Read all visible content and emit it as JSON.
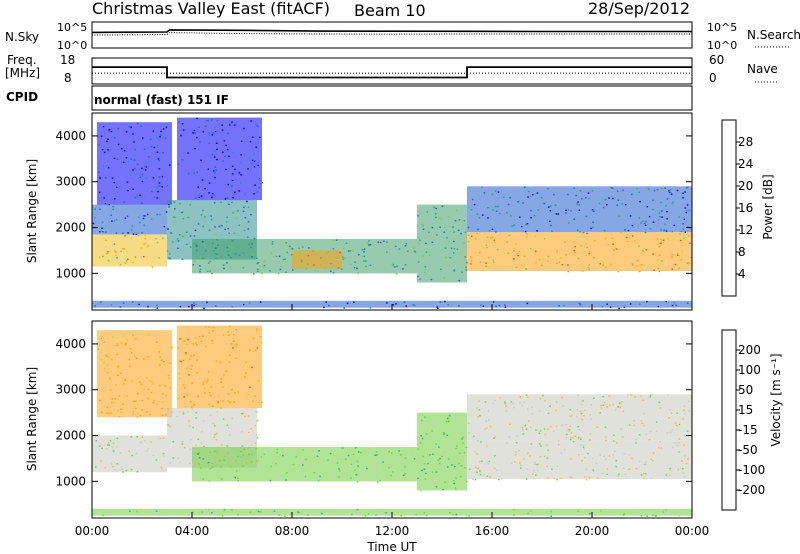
{
  "header": {
    "station": "Christmas Valley East (fitACF)",
    "beam": "Beam 10",
    "date": "28/Sep/2012"
  },
  "strips": {
    "nsky_label": "N.Sky",
    "nsky_ticks": [
      "10^5",
      "10^0"
    ],
    "nsearch_label": "N.Search",
    "nsearch_ticks": [
      "10^5",
      "10^0"
    ],
    "freq_label_line1": "Freq.",
    "freq_label_line2": "[MHz]",
    "freq_ticks": [
      "18",
      "8"
    ],
    "nave_label": "Nave",
    "nave_ticks": [
      "60",
      "0"
    ],
    "cpid_label": "CPID",
    "cpid_value": "normal (fast) 151 IF"
  },
  "colors": {
    "power_scale": [
      "#0000ff",
      "#2060d0",
      "#2f8f8f",
      "#3fa070",
      "#6fd040",
      "#f0c020",
      "#ffa010",
      "#ff5000",
      "#ff0000"
    ],
    "velocity_scale": [
      "#ff0000",
      "#ff5000",
      "#ffa010",
      "#f0c020",
      "#c8c8c0",
      "#c8c8c0",
      "#6fd040",
      "#3fa070",
      "#2f8f8f",
      "#2040d0"
    ],
    "ground_scatter": "#c8c8c0"
  },
  "chart_data": [
    {
      "type": "line",
      "name": "N.Sky / N.Search noise strip",
      "xlabel": "",
      "ylabel": "N.Sky",
      "ylabel_right": "N.Search",
      "x_unit": "hours UT",
      "scale": "log",
      "ylim": [
        1,
        100000
      ],
      "series": [
        {
          "name": "N.Sky",
          "x": [
            0,
            3.0,
            3.1,
            6,
            9,
            12,
            15,
            18,
            21,
            24
          ],
          "y": [
            1000,
            1200,
            3000,
            2500,
            1800,
            1700,
            1600,
            1500,
            1500,
            1500
          ]
        },
        {
          "name": "N.Search",
          "x": [
            0,
            3.0,
            3.1,
            6,
            9,
            12,
            15,
            18,
            21,
            24
          ],
          "y": [
            300,
            400,
            900,
            600,
            500,
            450,
            500,
            500,
            500,
            500
          ]
        }
      ]
    },
    {
      "type": "line",
      "name": "Freq / Nave strip",
      "ylabel": "Freq. [MHz]",
      "ylabel_right": "Nave",
      "ylim": [
        8,
        18
      ],
      "ylim_right": [
        0,
        60
      ],
      "series": [
        {
          "name": "Freq.",
          "x": [
            0,
            3.0,
            3.0,
            15.0,
            15.0,
            24
          ],
          "y": [
            14.5,
            14.5,
            10.5,
            10.5,
            14.5,
            14.5
          ]
        },
        {
          "name": "Nave",
          "x": [
            0,
            24
          ],
          "y": [
            25,
            25
          ]
        }
      ]
    },
    {
      "type": "heatmap",
      "name": "Power",
      "xlabel": "Time UT",
      "ylabel": "Slant Range [km]",
      "xlim": [
        0,
        24
      ],
      "ylim": [
        200,
        4500
      ],
      "x_ticks": [
        "00:00",
        "04:00",
        "08:00",
        "12:00",
        "16:00",
        "20:00",
        "00:00"
      ],
      "y_ticks": [
        1000,
        2000,
        3000,
        4000
      ],
      "colorbar_label": "Power [dB]",
      "colorbar_ticks": [
        4,
        8,
        12,
        16,
        20,
        24,
        28
      ],
      "features": [
        {
          "t0": 0.0,
          "t1": 3.0,
          "r0": 1150,
          "r1": 1850,
          "level": 24
        },
        {
          "t0": 0.0,
          "t1": 3.0,
          "r0": 1850,
          "r1": 2500,
          "level": 8
        },
        {
          "t0": 0.2,
          "t1": 3.2,
          "r0": 2500,
          "r1": 4300,
          "level": 5
        },
        {
          "t0": 3.0,
          "t1": 6.6,
          "r0": 1300,
          "r1": 2600,
          "level": 12
        },
        {
          "t0": 3.4,
          "t1": 6.8,
          "r0": 2600,
          "r1": 4400,
          "level": 5
        },
        {
          "t0": 4.0,
          "t1": 13.0,
          "r0": 1000,
          "r1": 1750,
          "level": 14
        },
        {
          "t0": 8.0,
          "t1": 10.0,
          "r0": 1100,
          "r1": 1500,
          "level": 26
        },
        {
          "t0": 13.0,
          "t1": 15.0,
          "r0": 800,
          "r1": 2500,
          "level": 14
        },
        {
          "t0": 15.0,
          "t1": 24.0,
          "r0": 1050,
          "r1": 1900,
          "level": 26
        },
        {
          "t0": 15.0,
          "t1": 24.0,
          "r0": 1900,
          "r1": 2900,
          "level": 8
        },
        {
          "t0": 0.0,
          "t1": 24.0,
          "r0": 250,
          "r1": 400,
          "level": 6
        }
      ]
    },
    {
      "type": "heatmap",
      "name": "Velocity",
      "xlabel": "Time UT",
      "ylabel": "Slant Range [km]",
      "xlim": [
        0,
        24
      ],
      "ylim": [
        200,
        4500
      ],
      "x_ticks": [
        "00:00",
        "04:00",
        "08:00",
        "12:00",
        "16:00",
        "20:00",
        "00:00"
      ],
      "y_ticks": [
        1000,
        2000,
        3000,
        4000
      ],
      "colorbar_label": "Velocity [m s⁻¹]",
      "colorbar_ticks": [
        200,
        100,
        50,
        15,
        -15,
        -50,
        -100,
        -200
      ],
      "features": [
        {
          "t0": 0.0,
          "t1": 3.0,
          "r0": 1200,
          "r1": 2000,
          "level": 0
        },
        {
          "t0": 0.2,
          "t1": 3.2,
          "r0": 2400,
          "r1": 4300,
          "level": -60
        },
        {
          "t0": 3.0,
          "t1": 6.6,
          "r0": 1300,
          "r1": 2600,
          "level": 0
        },
        {
          "t0": 3.4,
          "t1": 6.8,
          "r0": 2600,
          "r1": 4400,
          "level": -70
        },
        {
          "t0": 4.0,
          "t1": 13.0,
          "r0": 1000,
          "r1": 1750,
          "level": 30
        },
        {
          "t0": 13.0,
          "t1": 15.0,
          "r0": 800,
          "r1": 2500,
          "level": 40
        },
        {
          "t0": 15.0,
          "t1": 24.0,
          "r0": 1050,
          "r1": 1900,
          "level": 0
        },
        {
          "t0": 15.0,
          "t1": 24.0,
          "r0": 1900,
          "r1": 2900,
          "level": 0
        },
        {
          "t0": 0.0,
          "t1": 24.0,
          "r0": 250,
          "r1": 400,
          "level": 30
        }
      ]
    }
  ]
}
